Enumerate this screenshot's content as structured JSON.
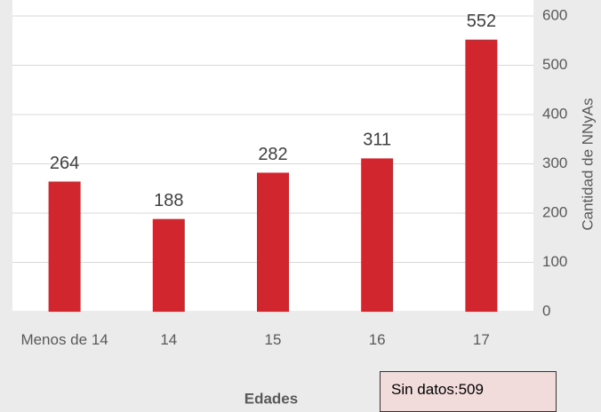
{
  "chart_data": {
    "type": "bar",
    "categories": [
      "Menos de 14",
      "14",
      "15",
      "16",
      "17"
    ],
    "values": [
      264,
      188,
      282,
      311,
      552
    ],
    "color": "#d1262e",
    "ylim": [
      0,
      600
    ],
    "yticks": [
      0,
      100,
      200,
      300,
      400,
      500,
      600
    ],
    "grid": true,
    "y_axis_side": "right",
    "x_label": "Edades",
    "y_label": "Cantidad de NNyAs",
    "annotation": "Sin datos:509"
  }
}
